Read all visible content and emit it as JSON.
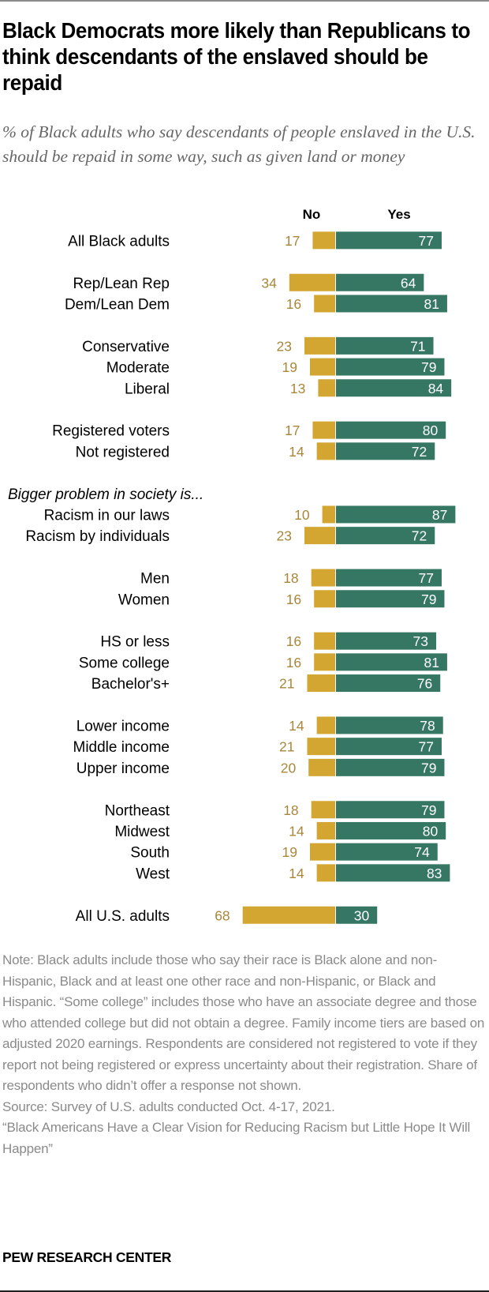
{
  "header": {
    "title": "Black Democrats more likely than Republicans to think descendants of the enslaved should be repaid",
    "subtitle": "% of Black adults who say descendants of people enslaved in the U.S. should be repaid in some way, such as given land or money"
  },
  "colors": {
    "no_bar": "#d2a630",
    "yes_bar": "#357763",
    "no_label": "#a8873a",
    "yes_label": "#ffffff"
  },
  "chart_data": {
    "type": "bar",
    "orientation": "horizontal-diverging",
    "title": "Black Democrats more likely than Republicans to think descendants of the enslaved should be repaid",
    "subtitle": "% of Black adults who say descendants of people enslaved in the U.S. should be repaid in some way, such as given land or money",
    "series_names": [
      "No",
      "Yes"
    ],
    "xlim": [
      -100,
      100
    ],
    "rows": [
      {
        "label": "All Black adults",
        "no": 17,
        "yes": 77,
        "group": 0
      },
      {
        "label": "Rep/Lean Rep",
        "no": 34,
        "yes": 64,
        "group": 1
      },
      {
        "label": "Dem/Lean Dem",
        "no": 16,
        "yes": 81,
        "group": 1
      },
      {
        "label": "Conservative",
        "no": 23,
        "yes": 71,
        "group": 2
      },
      {
        "label": "Moderate",
        "no": 19,
        "yes": 79,
        "group": 2
      },
      {
        "label": "Liberal",
        "no": 13,
        "yes": 84,
        "group": 2
      },
      {
        "label": "Registered voters",
        "no": 17,
        "yes": 80,
        "group": 3
      },
      {
        "label": "Not registered",
        "no": 14,
        "yes": 72,
        "group": 3
      },
      {
        "label": "Bigger problem in society is...",
        "heading": true,
        "group": 4
      },
      {
        "label": "Racism in our laws",
        "no": 10,
        "yes": 87,
        "group": 4
      },
      {
        "label": "Racism by individuals",
        "no": 23,
        "yes": 72,
        "group": 4
      },
      {
        "label": "Men",
        "no": 18,
        "yes": 77,
        "group": 5
      },
      {
        "label": "Women",
        "no": 16,
        "yes": 79,
        "group": 5
      },
      {
        "label": "HS or less",
        "no": 16,
        "yes": 73,
        "group": 6
      },
      {
        "label": "Some college",
        "no": 16,
        "yes": 81,
        "group": 6
      },
      {
        "label": "Bachelor's+",
        "no": 21,
        "yes": 76,
        "group": 6
      },
      {
        "label": "Lower income",
        "no": 14,
        "yes": 78,
        "group": 7
      },
      {
        "label": "Middle income",
        "no": 21,
        "yes": 77,
        "group": 7
      },
      {
        "label": "Upper income",
        "no": 20,
        "yes": 79,
        "group": 7
      },
      {
        "label": "Northeast",
        "no": 18,
        "yes": 79,
        "group": 8
      },
      {
        "label": "Midwest",
        "no": 14,
        "yes": 80,
        "group": 8
      },
      {
        "label": "South",
        "no": 19,
        "yes": 74,
        "group": 8
      },
      {
        "label": "West",
        "no": 14,
        "yes": 83,
        "group": 8
      },
      {
        "label": "All U.S. adults",
        "no": 68,
        "yes": 30,
        "group": 9
      }
    ]
  },
  "notes": {
    "note": "Note: Black adults include those who say their race is Black alone and non-Hispanic, Black and at least one other race and non-Hispanic, or Black and Hispanic. “Some college” includes those who have an associate degree and those who attended college but did not obtain a degree. Family income tiers are based on adjusted 2020 earnings. Respondents are considered not registered to vote if they report not being registered or express uncertainty about their registration. Share of respondents who didn’t offer a response not shown.",
    "source": "Source: Survey of U.S. adults conducted Oct. 4-17, 2021.",
    "report": "“Black Americans Have a Clear Vision for Reducing Racism but Little Hope It Will Happen”"
  },
  "footer": {
    "brand": "PEW RESEARCH CENTER"
  }
}
